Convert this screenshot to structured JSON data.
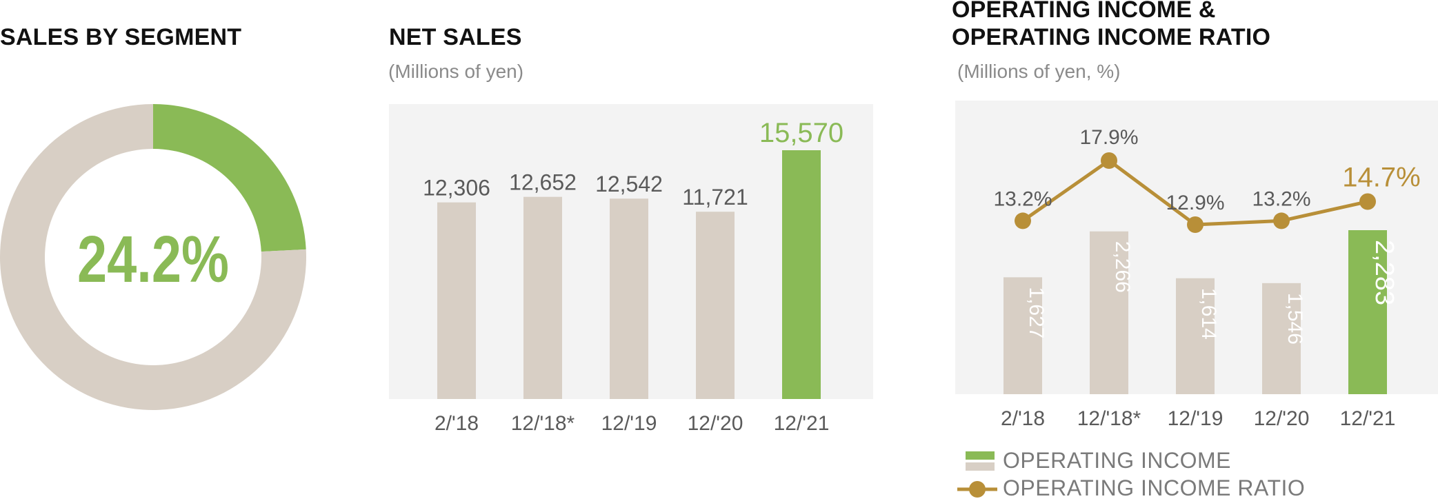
{
  "colors": {
    "green": "#8aba56",
    "beige": "#d8cfc5",
    "gold": "#b88f38",
    "panel_bg": "#f3f3f3",
    "label_gray": "#5a5a5a"
  },
  "segment": {
    "title": "SALES BY SEGMENT",
    "share_label": "24.2%",
    "share": 24.2
  },
  "net_sales": {
    "title": "NET SALES",
    "unit": "(Millions of yen)"
  },
  "operating": {
    "title_line1": "OPERATING INCOME &",
    "title_line2": "OPERATING INCOME RATIO",
    "unit": "(Millions of yen, %)",
    "legend": {
      "income": "OPERATING INCOME",
      "ratio": "OPERATING INCOME RATIO"
    }
  },
  "chart_data": [
    {
      "type": "pie",
      "title": "SALES BY SEGMENT",
      "slices": [
        {
          "value": 24.2,
          "highlight": true
        },
        {
          "value": 75.8
        }
      ],
      "center_label": "24.2%"
    },
    {
      "type": "bar",
      "title": "NET SALES",
      "ylabel": "(Millions of yen)",
      "categories": [
        "2/'18",
        "12/'18*",
        "12/'19",
        "12/'20",
        "12/'21"
      ],
      "values": [
        12306,
        12652,
        12542,
        11721,
        15570
      ],
      "labels": [
        "12,306",
        "12,652",
        "12,542",
        "11,721",
        "15,570"
      ],
      "highlight_index": 4
    },
    {
      "type": "bar",
      "title": "OPERATING INCOME & OPERATING INCOME RATIO",
      "ylabel": "(Millions of yen, %)",
      "categories": [
        "2/'18",
        "12/'18*",
        "12/'19",
        "12/'20",
        "12/'21"
      ],
      "series": [
        {
          "name": "OPERATING INCOME",
          "type": "bar",
          "values": [
            1627,
            2266,
            1614,
            1546,
            2283
          ],
          "labels": [
            "1,627",
            "2,266",
            "1,614",
            "1,546",
            "2,283"
          ]
        },
        {
          "name": "OPERATING INCOME RATIO",
          "type": "line",
          "values": [
            13.2,
            17.9,
            12.9,
            13.2,
            14.7
          ],
          "labels": [
            "13.2%",
            "17.9%",
            "12.9%",
            "13.2%",
            "14.7%"
          ]
        }
      ],
      "highlight_index": 4
    }
  ]
}
